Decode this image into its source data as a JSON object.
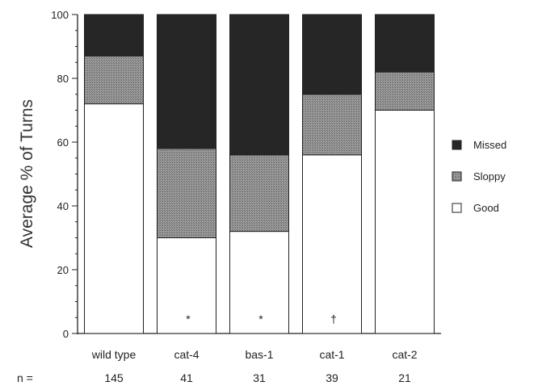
{
  "chart_data": {
    "type": "bar",
    "stacked": true,
    "ylabel": "Average % of Turns",
    "ylim": [
      0,
      100
    ],
    "yticks": [
      0,
      20,
      40,
      60,
      80,
      100
    ],
    "categories": [
      "wild type",
      "cat-4",
      "bas-1",
      "cat-1",
      "cat-2"
    ],
    "series": [
      {
        "name": "Good",
        "values": [
          72,
          30,
          32,
          56,
          70
        ],
        "color": "#ffffff"
      },
      {
        "name": "Sloppy",
        "values": [
          15,
          28,
          24,
          19,
          12
        ],
        "color": "#8a8a8a"
      },
      {
        "name": "Missed",
        "values": [
          13,
          42,
          44,
          25,
          18
        ],
        "color": "#262626"
      }
    ],
    "legend_order": [
      "Missed",
      "Sloppy",
      "Good"
    ],
    "legend_position": "right",
    "n_label": "n =",
    "n_values": [
      "145",
      "41",
      "31",
      "39",
      "21"
    ],
    "annotations": [
      "",
      "*",
      "*",
      "†",
      ""
    ]
  }
}
